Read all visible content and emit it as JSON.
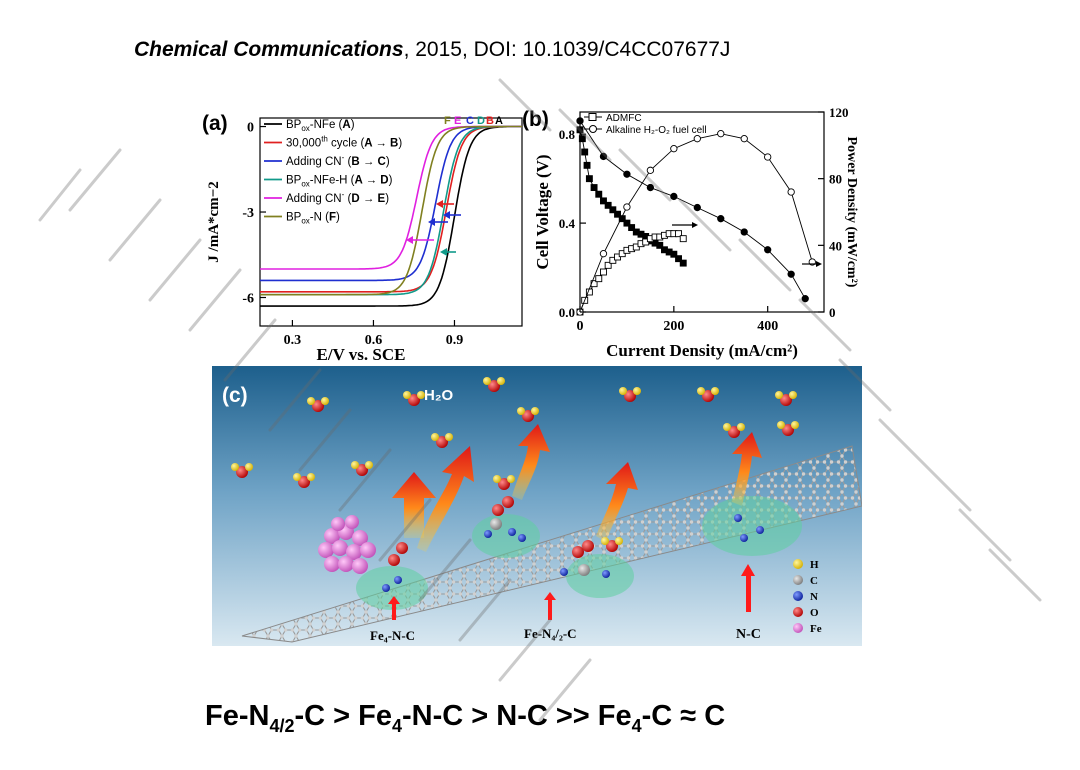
{
  "citation": {
    "journal": "Chemical Communications",
    "rest": ", 2015, DOI: 10.1039/C4CC07677J"
  },
  "colors": {
    "A": "#000000",
    "B": "#e02020",
    "C": "#1f2fd0",
    "D": "#119a8a",
    "E": "#e020e0",
    "F": "#808020",
    "panel_bg_top": "#1d5f8c",
    "panel_bg_bottom": "#d4e6f0"
  },
  "panel_a": {
    "label": "(a)",
    "xlabel": "E/V vs. SCE",
    "ylabel": "J /mA*cm−2",
    "xticks": [
      "0.3",
      "0.6",
      "0.9"
    ],
    "yticks": [
      "0",
      "-3",
      "-6"
    ],
    "xlim": [
      0.18,
      1.15
    ],
    "ylim": [
      -7,
      0.3
    ],
    "top_letters": [
      "F",
      "E",
      "C",
      "D",
      "B",
      "A"
    ],
    "legend": [
      {
        "key": "A",
        "pre": "BP",
        "sub": "ox",
        "post": "-NFe (",
        "bold": "A",
        "end": ")"
      },
      {
        "key": "B",
        "pre": "30,000",
        "sup": "th",
        "post": " cycle (",
        "bold": "A → B",
        "end": ")"
      },
      {
        "key": "C",
        "pre": "Adding CN",
        "sup": "-",
        "post": " (",
        "bold": "B → C",
        "end": ")"
      },
      {
        "key": "D",
        "pre": "BP",
        "sub": "ox",
        "post": "-NFe-H (",
        "bold": "A → D",
        "end": ")"
      },
      {
        "key": "E",
        "pre": "Adding CN",
        "sup": "-",
        "post": " (",
        "bold": "D → E",
        "end": ")"
      },
      {
        "key": "F",
        "pre": "BP",
        "sub": "ox",
        "post": "-N (",
        "bold": "F",
        "end": ")"
      }
    ]
  },
  "panel_b": {
    "label": "(b)",
    "xlabel": "Current Density (mA/cm²)",
    "ylabel_left": "Cell Voltage (V)",
    "ylabel_right": "Power Density (mW/cm²)",
    "xticks": [
      "0",
      "200",
      "400"
    ],
    "yticks_left": [
      "0.0",
      "0.4",
      "0.8"
    ],
    "yticks_right": [
      "0",
      "40",
      "80",
      "120"
    ],
    "legend": [
      "ADMFC",
      "Alkaline H₂-O₂ fuel cell"
    ]
  },
  "panel_c": {
    "label": "(c)",
    "h2o_label": "H₂O",
    "site_labels": [
      "Fe₄-N-C",
      "Fe-N₄/₂-C",
      "N-C"
    ],
    "legend": [
      {
        "sym": "H",
        "color": "#f2d21a"
      },
      {
        "sym": "C",
        "color": "#9a9a9a"
      },
      {
        "sym": "N",
        "color": "#1838c8"
      },
      {
        "sym": "O",
        "color": "#d81818"
      },
      {
        "sym": "Fe",
        "color": "#e070d8"
      }
    ]
  },
  "formula": {
    "p1": "Fe-N",
    "s1": "4/2",
    "p2": "-C > Fe",
    "s2": "4",
    "p3": "-N-C > N-C >> Fe",
    "s3": "4",
    "p4": "-C ≈ C"
  },
  "chart_data": [
    {
      "type": "line",
      "title": "",
      "xlabel": "E/V vs. SCE",
      "ylabel": "J /mA*cm-2",
      "xlim": [
        0.18,
        1.15
      ],
      "ylim": [
        -7,
        0.3
      ],
      "series": [
        {
          "name": "BPox-NFe (A)",
          "E_half": 0.9,
          "limiting_current": -6.3
        },
        {
          "name": "30,000th cycle (A → B)",
          "E_half": 0.87,
          "limiting_current": -5.8
        },
        {
          "name": "Adding CN- (B → C)",
          "E_half": 0.83,
          "limiting_current": -5.4
        },
        {
          "name": "BPox-NFe-H (A → D)",
          "E_half": 0.86,
          "limiting_current": -5.9
        },
        {
          "name": "Adding CN- (D → E)",
          "E_half": 0.76,
          "limiting_current": -5.0
        },
        {
          "name": "BPox-N (F)",
          "E_half": 0.78,
          "limiting_current": -5.9
        }
      ]
    },
    {
      "type": "scatter",
      "title": "",
      "xlabel": "Current Density (mA/cm2)",
      "ylabel": "Cell Voltage (V)",
      "y2label": "Power Density (mW/cm2)",
      "xlim": [
        0,
        520
      ],
      "ylim": [
        0,
        0.9
      ],
      "y2lim": [
        0,
        120
      ],
      "series": [
        {
          "name": "ADMFC",
          "axis": "left",
          "marker": "filled-square",
          "x": [
            0,
            5,
            10,
            15,
            20,
            30,
            40,
            50,
            60,
            70,
            80,
            90,
            100,
            110,
            120,
            130,
            140,
            150,
            160,
            170,
            180,
            190,
            200,
            210,
            220
          ],
          "y": [
            0.82,
            0.78,
            0.72,
            0.66,
            0.6,
            0.56,
            0.53,
            0.5,
            0.48,
            0.46,
            0.44,
            0.42,
            0.4,
            0.38,
            0.36,
            0.35,
            0.34,
            0.32,
            0.31,
            0.3,
            0.28,
            0.27,
            0.26,
            0.24,
            0.22
          ]
        },
        {
          "name": "Alkaline H2-O2 fuel cell",
          "axis": "left",
          "marker": "filled-circle",
          "x": [
            0,
            50,
            100,
            150,
            200,
            250,
            300,
            350,
            400,
            450,
            480
          ],
          "y": [
            0.86,
            0.7,
            0.62,
            0.56,
            0.52,
            0.47,
            0.42,
            0.36,
            0.28,
            0.17,
            0.06
          ]
        },
        {
          "name": "ADMFC",
          "axis": "right",
          "marker": "open-square",
          "x": [
            0,
            10,
            20,
            30,
            40,
            50,
            60,
            70,
            80,
            90,
            100,
            110,
            120,
            130,
            140,
            150,
            160,
            170,
            180,
            190,
            200,
            210,
            220
          ],
          "y": [
            0,
            7,
            12,
            17,
            20,
            24,
            28,
            31,
            33,
            35,
            37,
            38,
            39,
            41,
            42,
            44,
            45,
            45,
            46,
            47,
            47,
            47,
            44
          ]
        },
        {
          "name": "Alkaline H2-O2 fuel cell",
          "axis": "right",
          "marker": "open-circle",
          "x": [
            0,
            50,
            100,
            150,
            200,
            250,
            300,
            350,
            400,
            450,
            495
          ],
          "y": [
            0,
            35,
            63,
            85,
            98,
            104,
            107,
            104,
            93,
            72,
            30
          ]
        }
      ]
    }
  ]
}
